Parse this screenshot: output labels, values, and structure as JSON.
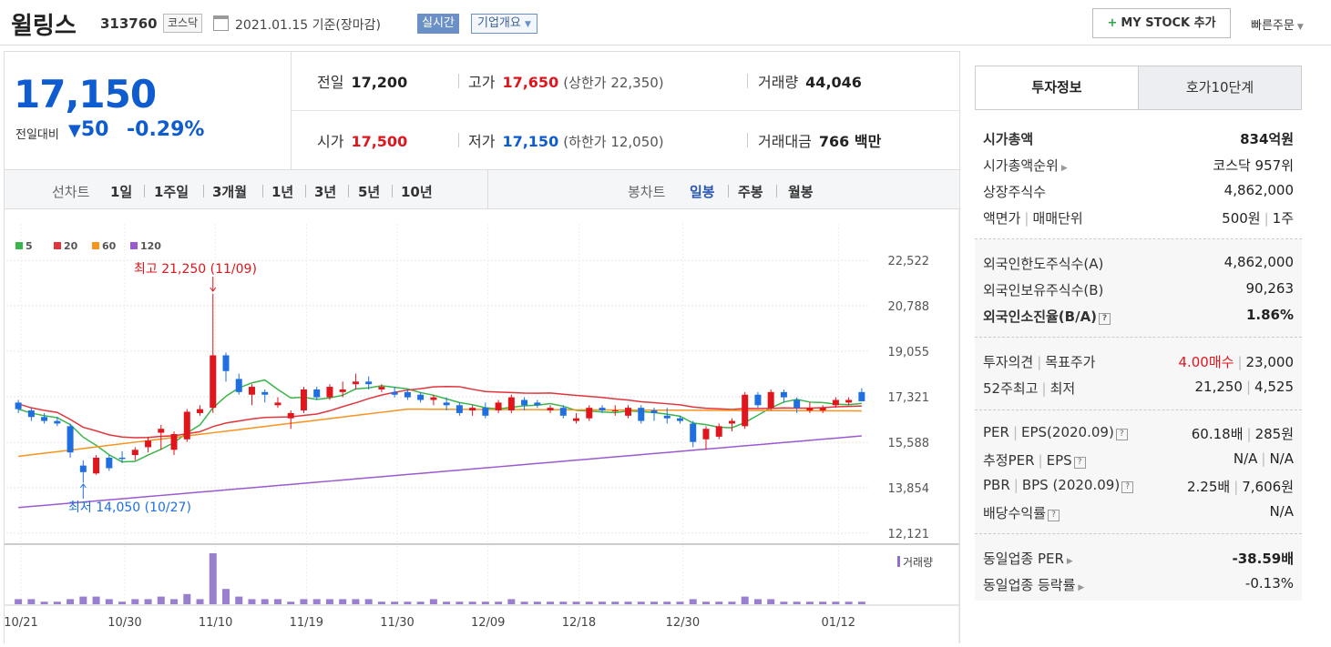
{
  "header": {
    "name": "윌링스",
    "code": "313760",
    "market": "코스닥",
    "date": "2021.01.15 기준(장마감)",
    "realtime": "실시간",
    "company_info": "기업개요",
    "mystock": "MY STOCK 추가",
    "quick_order": "빠른주문"
  },
  "quote": {
    "price": "17,150",
    "diff_label": "전일대비",
    "diff": "50",
    "rate": "-0.29%",
    "prev_label": "전일",
    "prev": "17,200",
    "high_label": "고가",
    "high": "17,650",
    "upper": "(상한가 22,350)",
    "volume_label": "거래량",
    "volume": "44,046",
    "open_label": "시가",
    "open": "17,500",
    "low_label": "저가",
    "low": "17,150",
    "lower": "(하한가 12,050)",
    "amount_label": "거래대금",
    "amount": "766 백만"
  },
  "period": {
    "line_label": "선차트",
    "line_opts": [
      "1일",
      "1주일",
      "3개월",
      "1년",
      "3년",
      "5년",
      "10년"
    ],
    "candle_label": "봉차트",
    "candle_opts": [
      "일봉",
      "주봉",
      "월봉"
    ],
    "active_candle": "일봉"
  },
  "tabs": {
    "invest": "투자정보",
    "hoga": "호가10단계"
  },
  "info": {
    "mcap_k": "시가총액",
    "mcap_v": "834억원",
    "mrank_k": "시가총액순위",
    "mrank_v": "코스닥 957위",
    "shares_k": "상장주식수",
    "shares_v": "4,862,000",
    "par_k": "액면가",
    "unit_k": "매매단위",
    "par_v": "500원",
    "unit_v": "1주",
    "flimit_k": "외국인한도주식수(A)",
    "flimit_v": "4,862,000",
    "fhold_k": "외국인보유주식수(B)",
    "fhold_v": "90,263",
    "fratio_k": "외국인소진율(B/A)",
    "fratio_v": "1.86%",
    "opinion_k": "투자의견",
    "target_k": "목표주가",
    "opinion_v": "4.00매수",
    "target_v": "23,000",
    "w52h_k": "52주최고",
    "w52l_k": "최저",
    "w52h_v": "21,250",
    "w52l_v": "4,525",
    "per_k": "PER",
    "eps_k": "EPS(2020.09)",
    "per_v": "60.18배",
    "eps_v": "285원",
    "eper_k": "추정PER",
    "eeps_k": "EPS",
    "eper_v": "N/A",
    "eeps_v": "N/A",
    "pbr_k": "PBR",
    "bps_k": "BPS (2020.09)",
    "pbr_v": "2.25배",
    "bps_v": "7,606원",
    "div_k": "배당수익률",
    "div_v": "N/A",
    "sper_k": "동일업종 PER",
    "sper_v": "-38.59배",
    "srate_k": "동일업종 등락률",
    "srate_v": "-0.13%"
  },
  "chart_data": {
    "type": "candlestick",
    "legend": [
      "5",
      "20",
      "60",
      "120"
    ],
    "legend_colors": [
      "#39b54a",
      "#e1353c",
      "#f7931e",
      "#9b59d0"
    ],
    "up_color": "#e1151c",
    "down_color": "#1f6fe0",
    "y_ticks": [
      "22,522",
      "20,788",
      "19,055",
      "17,321",
      "15,588",
      "13,854",
      "12,121"
    ],
    "ylim": [
      12121,
      22522
    ],
    "x_labels": [
      "10/21",
      "10/30",
      "11/10",
      "11/19",
      "11/30",
      "12/09",
      "12/18",
      "12/30",
      "01/12"
    ],
    "high_note": "최고 21,250 (11/09)",
    "low_note": "최저 14,050 (10/27)",
    "volume_label": "거래량",
    "candles": [
      [
        17100,
        17200,
        16700,
        16850
      ],
      [
        16800,
        16900,
        16400,
        16550
      ],
      [
        16550,
        16700,
        16300,
        16400
      ],
      [
        16400,
        16550,
        16200,
        16300
      ],
      [
        16200,
        16300,
        15000,
        15200
      ],
      [
        14700,
        14900,
        14050,
        14450
      ],
      [
        14400,
        15100,
        14350,
        15000
      ],
      [
        15000,
        15100,
        14500,
        14600
      ],
      [
        15000,
        15250,
        14800,
        14950
      ],
      [
        15100,
        15400,
        14900,
        15300
      ],
      [
        15400,
        15800,
        15200,
        15650
      ],
      [
        15950,
        16250,
        15300,
        16100
      ],
      [
        15300,
        16000,
        15100,
        15900
      ],
      [
        15700,
        16850,
        15600,
        16750
      ],
      [
        16700,
        17000,
        16600,
        16850
      ],
      [
        16900,
        21250,
        16700,
        18900
      ],
      [
        18900,
        19000,
        17900,
        18300
      ],
      [
        18000,
        18200,
        17400,
        17500
      ],
      [
        17400,
        17800,
        17000,
        17700
      ],
      [
        17500,
        17600,
        17100,
        17400
      ],
      [
        17000,
        17300,
        16900,
        17100
      ],
      [
        16500,
        16800,
        16100,
        16700
      ],
      [
        16800,
        17700,
        16700,
        17600
      ],
      [
        17600,
        17700,
        17200,
        17300
      ],
      [
        17300,
        17800,
        17200,
        17700
      ],
      [
        17500,
        17900,
        17300,
        17600
      ],
      [
        17800,
        18200,
        17600,
        17900
      ],
      [
        17900,
        18100,
        17600,
        17800
      ],
      [
        17600,
        17800,
        17500,
        17700
      ],
      [
        17500,
        17700,
        17300,
        17400
      ],
      [
        17500,
        17600,
        17200,
        17300
      ],
      [
        17400,
        17500,
        17100,
        17200
      ],
      [
        17200,
        17400,
        17000,
        17300
      ],
      [
        17100,
        17300,
        16800,
        17000
      ],
      [
        17000,
        17100,
        16600,
        16700
      ],
      [
        16800,
        17000,
        16600,
        16900
      ],
      [
        16900,
        17100,
        16500,
        16600
      ],
      [
        16800,
        17200,
        16700,
        17100
      ],
      [
        16800,
        17400,
        16700,
        17300
      ],
      [
        17200,
        17300,
        16800,
        17000
      ],
      [
        17100,
        17200,
        16900,
        17000
      ],
      [
        16800,
        17000,
        16700,
        16900
      ],
      [
        16900,
        17000,
        16500,
        16600
      ],
      [
        16400,
        16700,
        16300,
        16500
      ],
      [
        16500,
        17000,
        16400,
        16900
      ],
      [
        16900,
        17000,
        16700,
        16800
      ],
      [
        16800,
        17000,
        16600,
        16800
      ],
      [
        16600,
        17000,
        16500,
        16900
      ],
      [
        16900,
        17000,
        16300,
        16400
      ],
      [
        16800,
        16900,
        16400,
        16700
      ],
      [
        16600,
        16900,
        16300,
        16500
      ],
      [
        16500,
        16600,
        16300,
        16400
      ],
      [
        16300,
        16400,
        15400,
        15600
      ],
      [
        15700,
        16200,
        15300,
        16100
      ],
      [
        15800,
        16300,
        15700,
        16200
      ],
      [
        16300,
        16500,
        16000,
        16400
      ],
      [
        16200,
        17500,
        16100,
        17400
      ],
      [
        17400,
        17500,
        16900,
        17000
      ],
      [
        16900,
        17600,
        16800,
        17500
      ],
      [
        17500,
        17600,
        17100,
        17300
      ],
      [
        17200,
        17300,
        16700,
        16900
      ],
      [
        16800,
        17100,
        16700,
        16900
      ],
      [
        16800,
        17000,
        16700,
        16900
      ],
      [
        17000,
        17300,
        16900,
        17200
      ],
      [
        17100,
        17300,
        17000,
        17200
      ],
      [
        17500,
        17650,
        17150,
        17150
      ]
    ],
    "volumes": [
      2,
      2,
      1,
      1,
      2,
      3,
      3,
      2,
      1,
      2,
      2,
      3,
      2,
      4,
      2,
      20,
      6,
      3,
      2,
      2,
      2,
      1,
      2,
      2,
      2,
      2,
      2,
      2,
      1,
      1,
      1,
      1,
      2,
      1,
      1,
      1,
      1,
      1,
      2,
      1,
      1,
      1,
      1,
      1,
      1,
      1,
      1,
      1,
      1,
      1,
      1,
      1,
      2,
      1,
      1,
      1,
      3,
      2,
      2,
      1,
      1,
      1,
      1,
      1,
      1,
      1
    ]
  }
}
